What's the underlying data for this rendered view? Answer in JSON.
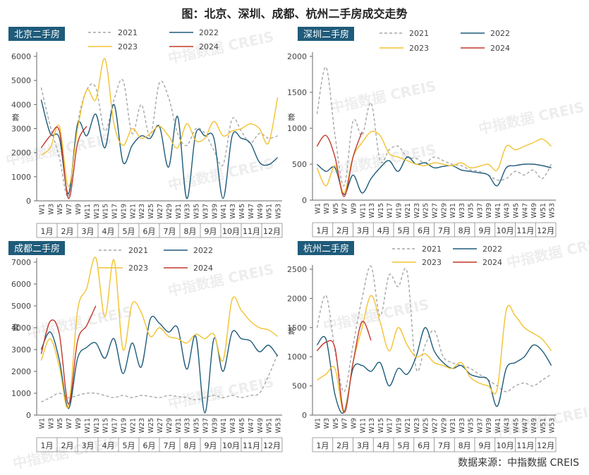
{
  "title": "图：北京、深圳、成都、杭州二手房成交走势",
  "source": "数据来源：中指数据 CREIS",
  "watermark": "中指数据 CREIS",
  "colors": {
    "s2021": "#a6a6a6",
    "s2022": "#1f5b7a",
    "s2023": "#f2c230",
    "s2024": "#c0392b",
    "panel_title_bg": "#1f5b7a"
  },
  "shared": {
    "x": [
      "W1",
      "W3",
      "W5",
      "W7",
      "W9",
      "W11",
      "W13",
      "W15",
      "W17",
      "W19",
      "W21",
      "W23",
      "W25",
      "W27",
      "W29",
      "W31",
      "W33",
      "W35",
      "W37",
      "W39",
      "W41",
      "W43",
      "W45",
      "W47",
      "W49",
      "W51",
      "W53"
    ],
    "months": [
      "1月",
      "2月",
      "3月",
      "4月",
      "5月",
      "6月",
      "7月",
      "8月",
      "9月",
      "10月",
      "11月",
      "12月"
    ],
    "ylabel": "套"
  },
  "chart_data": [
    {
      "type": "line",
      "title": "北京二手房",
      "ylim": [
        0,
        6000
      ],
      "yticks": [
        0,
        1000,
        2000,
        3000,
        4000,
        5000,
        6000
      ],
      "series": [
        {
          "name": "2021",
          "style": "dash",
          "values": [
            4700,
            3100,
            1800,
            200,
            3200,
            4600,
            4700,
            2900,
            4200,
            5000,
            2800,
            4000,
            2700,
            4900,
            4300,
            2800,
            2300,
            3000,
            2800,
            2100,
            1500,
            3400,
            2900,
            2400,
            2800,
            2600,
            2700
          ]
        },
        {
          "name": "2022",
          "style": "solid",
          "values": [
            4200,
            2800,
            2600,
            300,
            3200,
            2700,
            3600,
            2200,
            4000,
            1600,
            2300,
            2700,
            2600,
            3100,
            1400,
            3500,
            100,
            2800,
            2700,
            2600,
            100,
            2700,
            2600,
            2400,
            1600,
            1500,
            1800
          ]
        },
        {
          "name": "2023",
          "style": "solid",
          "values": [
            1900,
            2200,
            3100,
            600,
            3000,
            4600,
            4200,
            5900,
            3200,
            2300,
            3000,
            2600,
            2800,
            3100,
            2700,
            2200,
            3200,
            2500,
            2600,
            3300,
            2700,
            2900,
            3000,
            3200,
            3000,
            2400,
            4300
          ]
        },
        {
          "name": "2024",
          "style": "solid",
          "values": [
            2200,
            2700,
            2900,
            100,
            2400,
            3100
          ]
        }
      ]
    },
    {
      "type": "line",
      "title": "深圳二手房",
      "ylim": [
        0,
        2000
      ],
      "yticks": [
        0,
        500,
        1000,
        1500,
        2000
      ],
      "series": [
        {
          "name": "2021",
          "style": "dash",
          "values": [
            1200,
            1850,
            900,
            200,
            1100,
            900,
            1350,
            550,
            700,
            750,
            600,
            580,
            520,
            600,
            550,
            500,
            480,
            420,
            400,
            350,
            280,
            300,
            400,
            350,
            420,
            300,
            500
          ]
        },
        {
          "name": "2022",
          "style": "solid",
          "values": [
            500,
            400,
            450,
            80,
            350,
            100,
            300,
            450,
            550,
            400,
            600,
            500,
            520,
            450,
            470,
            480,
            420,
            400,
            380,
            350,
            200,
            450,
            480,
            500,
            500,
            480,
            450
          ]
        },
        {
          "name": "2023",
          "style": "solid",
          "values": [
            450,
            200,
            480,
            100,
            600,
            800,
            950,
            900,
            650,
            600,
            550,
            500,
            480,
            520,
            500,
            480,
            520,
            450,
            470,
            500,
            420,
            750,
            700,
            750,
            800,
            850,
            750
          ]
        },
        {
          "name": "2024",
          "style": "solid",
          "values": [
            750,
            900,
            600,
            50,
            600,
            950
          ]
        }
      ]
    },
    {
      "type": "line",
      "title": "成都二手房",
      "ylim": [
        0,
        7000
      ],
      "yticks": [
        0,
        1000,
        2000,
        3000,
        4000,
        5000,
        6000,
        7000
      ],
      "series": [
        {
          "name": "2021",
          "style": "dash",
          "values": [
            600,
            800,
            1000,
            800,
            900,
            1000,
            1000,
            900,
            800,
            900,
            800,
            900,
            850,
            800,
            900,
            850,
            800,
            700,
            800,
            900,
            800,
            900,
            800,
            900,
            1000,
            1800,
            2800
          ]
        },
        {
          "name": "2022",
          "style": "solid",
          "values": [
            3000,
            3800,
            2500,
            300,
            2600,
            3100,
            3300,
            2600,
            3500,
            1900,
            3300,
            2200,
            4400,
            4200,
            3800,
            4000,
            2100,
            3600,
            100,
            3500,
            2000,
            3800,
            3500,
            3400,
            2900,
            3200,
            2700
          ]
        },
        {
          "name": "2023",
          "style": "solid",
          "values": [
            2500,
            3500,
            2200,
            400,
            4800,
            5800,
            7200,
            4500,
            7100,
            3000,
            5100,
            4700,
            3600,
            4000,
            3600,
            3500,
            3300,
            3700,
            3500,
            3700,
            2500,
            5300,
            4800,
            4300,
            4000,
            3900,
            3600
          ]
        },
        {
          "name": "2024",
          "style": "solid",
          "values": [
            2800,
            4300,
            3700,
            500,
            3400,
            4100,
            5000
          ]
        }
      ]
    },
    {
      "type": "line",
      "title": "杭州二手房",
      "ylim": [
        0,
        2500
      ],
      "yticks": [
        0,
        500,
        1000,
        1500,
        2000,
        2500
      ],
      "series": [
        {
          "name": "2021",
          "style": "dash",
          "values": [
            1500,
            2050,
            1100,
            400,
            1200,
            2000,
            2550,
            1700,
            2400,
            2200,
            2450,
            800,
            1200,
            1450,
            1000,
            900,
            850,
            800,
            700,
            600,
            500,
            400,
            500,
            550,
            500,
            600,
            700
          ]
        },
        {
          "name": "2022",
          "style": "solid",
          "values": [
            1200,
            1300,
            350,
            50,
            800,
            850,
            750,
            900,
            500,
            800,
            700,
            1000,
            1500,
            1100,
            900,
            800,
            850,
            700,
            650,
            600,
            150,
            800,
            900,
            1000,
            1200,
            1100,
            850
          ]
        },
        {
          "name": "2023",
          "style": "solid",
          "values": [
            600,
            700,
            800,
            50,
            900,
            1500,
            2050,
            1600,
            1100,
            1500,
            1200,
            1000,
            1050,
            900,
            850,
            800,
            900,
            650,
            550,
            500,
            450,
            1800,
            1700,
            1500,
            1400,
            1300,
            1100
          ]
        },
        {
          "name": "2024",
          "style": "solid",
          "values": [
            1100,
            1250,
            1150,
            50,
            900,
            1600,
            1280
          ]
        }
      ]
    }
  ]
}
